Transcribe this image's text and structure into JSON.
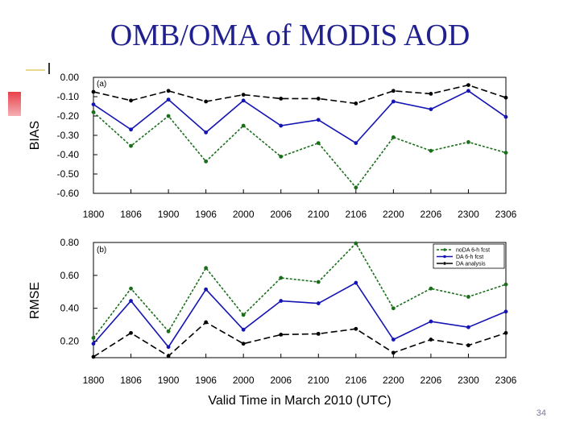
{
  "slide": {
    "title": "OMB/OMA of MODIS AOD",
    "page_number": "34"
  },
  "colors": {
    "title": "#1f1f8f",
    "noDA": "#1a6e1a",
    "DA": "#1414b4",
    "analysis": "#000000",
    "accent": "#e8404a"
  },
  "chart_data": [
    {
      "type": "line",
      "panel_label": "(a)",
      "ylabel": "BIAS",
      "xlabel": "",
      "categories": [
        "1800",
        "1806",
        "1900",
        "1906",
        "2000",
        "2006",
        "2100",
        "2106",
        "2200",
        "2206",
        "2300",
        "2306"
      ],
      "ylim": [
        -0.6,
        0.0
      ],
      "yticks": [
        0.0,
        -0.1,
        -0.2,
        -0.3,
        -0.4,
        -0.5,
        -0.6
      ],
      "ytick_labels": [
        "0.00",
        "-0.10",
        "-0.20",
        "-0.30",
        "-0.40",
        "-0.50",
        "-0.60"
      ],
      "series": [
        {
          "name": "noDA 6-h fcst",
          "style": "dotted",
          "color": "#1a6e1a",
          "values": [
            -0.18,
            -0.355,
            -0.2,
            -0.435,
            -0.25,
            -0.41,
            -0.34,
            -0.57,
            -0.31,
            -0.38,
            -0.335,
            -0.39
          ]
        },
        {
          "name": "DA 6-h fcst",
          "style": "solid",
          "color": "#1414b4",
          "values": [
            -0.14,
            -0.27,
            -0.115,
            -0.285,
            -0.12,
            -0.25,
            -0.22,
            -0.34,
            -0.125,
            -0.165,
            -0.07,
            -0.205
          ]
        },
        {
          "name": "DA analysis",
          "style": "dashed",
          "color": "#000000",
          "values": [
            -0.075,
            -0.12,
            -0.07,
            -0.125,
            -0.09,
            -0.11,
            -0.11,
            -0.135,
            -0.07,
            -0.085,
            -0.04,
            -0.105
          ]
        }
      ]
    },
    {
      "type": "line",
      "panel_label": "(b)",
      "ylabel": "RMSE",
      "xlabel": "Valid Time in March 2010 (UTC)",
      "categories": [
        "1800",
        "1806",
        "1900",
        "1906",
        "2000",
        "2006",
        "2100",
        "2106",
        "2200",
        "2206",
        "2300",
        "2306"
      ],
      "ylim": [
        0.1,
        0.8
      ],
      "yticks": [
        0.8,
        0.6,
        0.4,
        0.2
      ],
      "ytick_labels": [
        "0.80",
        "0.60",
        "0.40",
        "0.20"
      ],
      "legend": {
        "placement": "top-right",
        "entries": [
          "noDA 6-h fcst",
          "DA 6-h fcst",
          "DA analysis"
        ]
      },
      "series": [
        {
          "name": "noDA 6-h fcst",
          "style": "dotted",
          "color": "#1a6e1a",
          "values": [
            0.22,
            0.52,
            0.26,
            0.645,
            0.36,
            0.585,
            0.56,
            0.795,
            0.4,
            0.52,
            0.47,
            0.545
          ]
        },
        {
          "name": "DA 6-h fcst",
          "style": "solid",
          "color": "#1414b4",
          "values": [
            0.185,
            0.445,
            0.165,
            0.515,
            0.27,
            0.445,
            0.43,
            0.555,
            0.21,
            0.32,
            0.285,
            0.38
          ]
        },
        {
          "name": "DA analysis",
          "style": "dashed",
          "color": "#000000",
          "values": [
            0.105,
            0.25,
            0.11,
            0.315,
            0.185,
            0.24,
            0.245,
            0.275,
            0.13,
            0.21,
            0.175,
            0.25
          ]
        }
      ]
    }
  ]
}
